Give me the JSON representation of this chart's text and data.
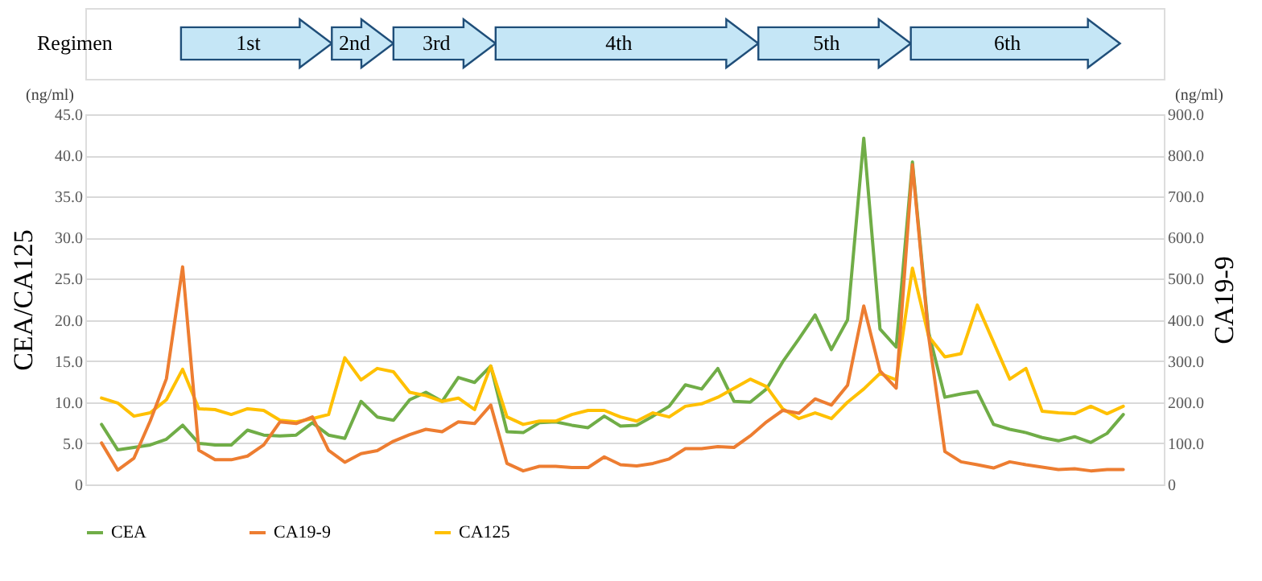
{
  "chart_data": {
    "type": "line",
    "categories": [
      null,
      null,
      null,
      null,
      null,
      null,
      null,
      null,
      null,
      null,
      null,
      null,
      null,
      null,
      null,
      null,
      null,
      null,
      null,
      null,
      null,
      null,
      null,
      null,
      null,
      null,
      null,
      null,
      null,
      null,
      null,
      null,
      null,
      null,
      null,
      null,
      null,
      null,
      null,
      null,
      null,
      null,
      null,
      null,
      null,
      null,
      null,
      null,
      null,
      null,
      null,
      null,
      null,
      null,
      null,
      null,
      null,
      null,
      null,
      null,
      null,
      null,
      null,
      null
    ],
    "ylabel": "CEA/CA125",
    "y2label": "CA19-9",
    "ylim": [
      0,
      45
    ],
    "yticks": [
      0,
      {
        "value": 5,
        "label": "5.0"
      },
      {
        "value": 10,
        "label": "10.0"
      },
      {
        "value": 15,
        "label": "15.0"
      },
      {
        "value": 20,
        "label": "20.0"
      },
      {
        "value": 25,
        "label": "25.0"
      },
      {
        "value": 30,
        "label": "30.0"
      },
      {
        "value": 35,
        "label": "35.0"
      },
      {
        "value": 40,
        "label": "40.0"
      },
      {
        "value": 45,
        "label": "45.0"
      }
    ],
    "y2lim": [
      0,
      900
    ],
    "y2ticks": [
      0,
      {
        "value": 100,
        "label": "100.0"
      },
      {
        "value": 200,
        "label": "200.0"
      },
      {
        "value": 300,
        "label": "300.0"
      },
      {
        "value": 400,
        "label": "400.0"
      },
      {
        "value": 500,
        "label": "500.0"
      },
      {
        "value": 600,
        "label": "600.0"
      },
      {
        "value": 700,
        "label": "700.0"
      },
      {
        "value": 800,
        "label": "800.0"
      },
      {
        "value": 900,
        "label": "900.0"
      }
    ],
    "grid": "y",
    "legend": "bottom",
    "tick_labels": "y",
    "annotations": [
      "Regimen",
      "1st",
      "2nd",
      "3rd",
      "4th",
      "5th",
      "6th",
      "(ng/ml)",
      "(ng/ml)"
    ],
    "series": [
      {
        "name": "CEA",
        "color": "#70ad47",
        "values": [
          7.3,
          4.2,
          4.5,
          4.8,
          5.5,
          7.2,
          5.0,
          4.8,
          4.8,
          6.6,
          6.0,
          5.9,
          6.0,
          7.5,
          6.0,
          5.6,
          10.1,
          8.2,
          7.8,
          10.3,
          11.2,
          10.1,
          13.0,
          12.4,
          14.4,
          6.4,
          6.3,
          7.5,
          7.6,
          7.2,
          6.9,
          8.3,
          7.1,
          7.2,
          8.3,
          9.5,
          12.1,
          11.6,
          14.1,
          10.1,
          10.0,
          11.6,
          14.9,
          17.7,
          20.6,
          16.4,
          20.0,
          42.1,
          18.9,
          16.7,
          39.2,
          18.5,
          10.6,
          11.0,
          11.3,
          7.3,
          6.7,
          6.3,
          5.7,
          5.3,
          5.8,
          5.1,
          6.2,
          8.5
        ]
      },
      {
        "name": "CA19-9",
        "color": "#ed7d31",
        "axis": "y2",
        "values": [
          101,
          35,
          64,
          154,
          257,
          529,
          83,
          60,
          60,
          69,
          96,
          152,
          148,
          164,
          83,
          54,
          75,
          82,
          105,
          121,
          134,
          128,
          152,
          148,
          193,
          51,
          33,
          44,
          44,
          41,
          41,
          67,
          48,
          45,
          51,
          62,
          87,
          87,
          92,
          90,
          118,
          152,
          180,
          173,
          208,
          193,
          241,
          434,
          276,
          234,
          777,
          360,
          80,
          55,
          48,
          40,
          55,
          48,
          42,
          36,
          38,
          33,
          36,
          36
        ]
      },
      {
        "name": "CA125",
        "color": "#ffc000",
        "values": [
          10.5,
          9.9,
          8.3,
          8.7,
          10.3,
          14.0,
          9.2,
          9.1,
          8.5,
          9.2,
          9.0,
          7.8,
          7.6,
          8.0,
          8.5,
          15.4,
          12.7,
          14.1,
          13.7,
          11.2,
          10.8,
          10.1,
          10.5,
          9.1,
          14.4,
          8.2,
          7.3,
          7.7,
          7.7,
          8.5,
          9.0,
          9.0,
          8.2,
          7.7,
          8.7,
          8.2,
          9.5,
          9.8,
          10.6,
          11.7,
          12.8,
          11.9,
          9.2,
          8.0,
          8.7,
          8.0,
          10.0,
          11.6,
          13.5,
          12.7,
          26.3,
          18.0,
          15.5,
          15.9,
          21.8,
          17.3,
          12.8,
          14.1,
          8.9,
          8.7,
          8.6,
          9.5,
          8.6,
          9.5
        ]
      }
    ]
  }
}
